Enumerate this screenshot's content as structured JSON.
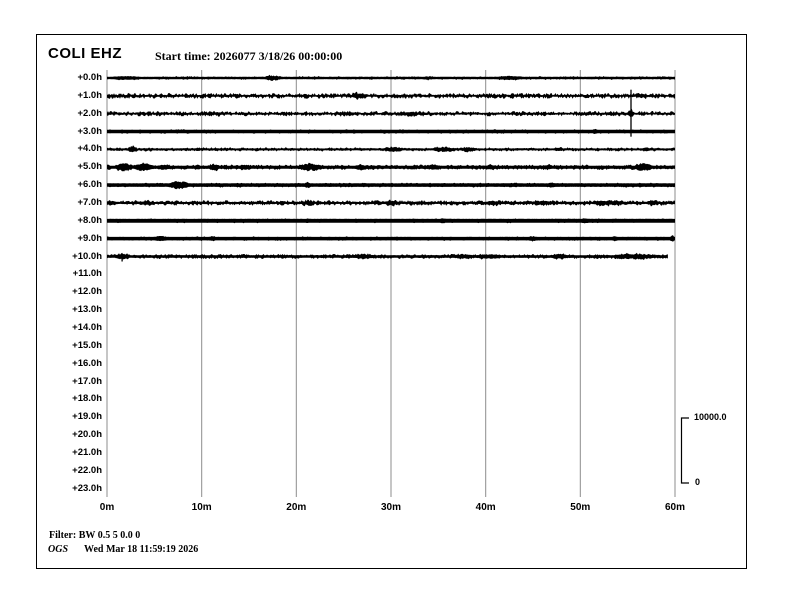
{
  "header": {
    "station": "COLI EHZ",
    "start_time": "Start time: 2026077  3/18/26 00:00:00"
  },
  "footer": {
    "filter": "Filter: BW 0.5 5 0.0 0",
    "org": "OGS",
    "timestamp": "Wed Mar 18 11:59:19 2026"
  },
  "colors": {
    "trace": "#000000",
    "grid": "#8c8c8c",
    "background": "#ffffff",
    "frame": "#000000"
  },
  "chart_data": {
    "type": "line",
    "subtype": "helicorder-seismogram",
    "title": "COLI EHZ",
    "start_time_label": "Start time: 2026077  3/18/26 00:00:00",
    "xlabel_units": "minutes",
    "x_ticks": [
      "0m",
      "10m",
      "20m",
      "30m",
      "40m",
      "50m",
      "60m"
    ],
    "x_range_minutes": [
      0,
      60
    ],
    "row_labels": [
      "+0.0h",
      "+1.0h",
      "+2.0h",
      "+3.0h",
      "+4.0h",
      "+5.0h",
      "+6.0h",
      "+7.0h",
      "+8.0h",
      "+9.0h",
      "+10.0h",
      "+11.0h",
      "+12.0h",
      "+13.0h",
      "+14.0h",
      "+15.0h",
      "+16.0h",
      "+17.0h",
      "+18.0h",
      "+19.0h",
      "+20.0h",
      "+21.0h",
      "+22.0h",
      "+23.0h"
    ],
    "rows_with_data": 11,
    "grid": "vertical-10min",
    "scale_bar": {
      "max_label": "10000.0",
      "min_label": "0"
    },
    "traces": [
      {
        "row": 0,
        "label": "+0.0h",
        "half": 1.1,
        "fuzz": 0.35,
        "dens": 0.14,
        "end": 60,
        "events": [
          {
            "m0": 0.6,
            "m1": 3.5,
            "amp": 0.9
          },
          {
            "m0": 16.7,
            "m1": 18.3,
            "amp": 1.7
          },
          {
            "m0": 33.5,
            "m1": 34.2,
            "amp": 0.6
          },
          {
            "m0": 41.3,
            "m1": 43.9,
            "amp": 1.0
          }
        ],
        "spikes": []
      },
      {
        "row": 1,
        "label": "+1.0h",
        "half": 0.7,
        "fuzz": 0.85,
        "dens": 0.55,
        "end": 60,
        "events": [
          {
            "m0": 25.9,
            "m1": 27.5,
            "amp": 1.9
          },
          {
            "m0": 55.9,
            "m1": 57.1,
            "amp": 1.0
          }
        ],
        "spikes": []
      },
      {
        "row": 2,
        "label": "+2.0h",
        "half": 0.7,
        "fuzz": 0.75,
        "dens": 0.5,
        "end": 60,
        "events": [
          {
            "m0": 10.0,
            "m1": 12.5,
            "amp": 0.5
          },
          {
            "m0": 24.0,
            "m1": 26.5,
            "amp": 0.6
          },
          {
            "m0": 30.8,
            "m1": 34.0,
            "amp": 0.8
          },
          {
            "m0": 55.0,
            "m1": 55.7,
            "amp": 3.6
          }
        ],
        "spikes": [
          {
            "m": 55.35,
            "up": 24,
            "down": 23
          }
        ]
      },
      {
        "row": 3,
        "label": "+3.0h",
        "half": 1.7,
        "fuzz": 0.2,
        "dens": 0.1,
        "end": 60,
        "events": [
          {
            "m0": 51.3,
            "m1": 51.8,
            "amp": 0.8
          }
        ],
        "spikes": []
      },
      {
        "row": 4,
        "label": "+4.0h",
        "half": 0.9,
        "fuzz": 0.45,
        "dens": 0.3,
        "end": 60,
        "events": [
          {
            "m0": 2.2,
            "m1": 3.1,
            "amp": 2.5
          },
          {
            "m0": 29.2,
            "m1": 31.2,
            "amp": 1.5
          },
          {
            "m0": 34.5,
            "m1": 36.5,
            "amp": 1.7
          },
          {
            "m0": 37.6,
            "m1": 39.0,
            "amp": 1.4
          },
          {
            "m0": 47.3,
            "m1": 48.1,
            "amp": 0.9
          },
          {
            "m0": 56.6,
            "m1": 57.4,
            "amp": 1.1
          }
        ],
        "spikes": []
      },
      {
        "row": 5,
        "label": "+5.0h",
        "half": 1.4,
        "fuzz": 0.5,
        "dens": 0.35,
        "end": 60,
        "events": [
          {
            "m0": 1.0,
            "m1": 2.6,
            "amp": 2.7
          },
          {
            "m0": 2.9,
            "m1": 4.8,
            "amp": 2.9
          },
          {
            "m0": 5.3,
            "m1": 6.6,
            "amp": 1.3
          },
          {
            "m0": 10.8,
            "m1": 11.8,
            "amp": 2.3
          },
          {
            "m0": 14.0,
            "m1": 15.2,
            "amp": 1.3
          },
          {
            "m0": 20.3,
            "m1": 22.7,
            "amp": 2.5
          },
          {
            "m0": 26.2,
            "m1": 27.2,
            "amp": 1.6
          },
          {
            "m0": 34.0,
            "m1": 35.0,
            "amp": 1.1
          },
          {
            "m0": 40.0,
            "m1": 41.0,
            "amp": 1.1
          },
          {
            "m0": 46.0,
            "m1": 47.0,
            "amp": 1.0
          },
          {
            "m0": 55.8,
            "m1": 57.6,
            "amp": 2.5
          }
        ],
        "spikes": []
      },
      {
        "row": 6,
        "label": "+6.0h",
        "half": 1.7,
        "fuzz": 0.3,
        "dens": 0.12,
        "end": 60,
        "events": [
          {
            "m0": 6.6,
            "m1": 8.6,
            "amp": 2.5
          },
          {
            "m0": 20.9,
            "m1": 21.5,
            "amp": 1.3
          },
          {
            "m0": 46.6,
            "m1": 47.3,
            "amp": 0.9
          }
        ],
        "spikes": []
      },
      {
        "row": 7,
        "label": "+7.0h",
        "half": 0.9,
        "fuzz": 0.7,
        "dens": 0.5,
        "end": 60,
        "events": [
          {
            "m0": 0.0,
            "m1": 1.0,
            "amp": 1.3
          },
          {
            "m0": 3.6,
            "m1": 4.6,
            "amp": 1.0
          },
          {
            "m0": 20.6,
            "m1": 21.8,
            "amp": 1.4
          },
          {
            "m0": 29.4,
            "m1": 30.6,
            "amp": 1.4
          },
          {
            "m0": 39.9,
            "m1": 41.6,
            "amp": 1.1
          },
          {
            "m0": 45.0,
            "m1": 47.2,
            "amp": 1.0
          },
          {
            "m0": 51.3,
            "m1": 54.6,
            "amp": 1.6
          },
          {
            "m0": 57.0,
            "m1": 58.2,
            "amp": 1.2
          }
        ],
        "spikes": []
      },
      {
        "row": 8,
        "label": "+8.0h",
        "half": 1.9,
        "fuzz": 0.2,
        "dens": 0.08,
        "end": 60,
        "events": [
          {
            "m0": 35.2,
            "m1": 35.7,
            "amp": 0.8
          },
          {
            "m0": 50.2,
            "m1": 50.8,
            "amp": 0.9
          }
        ],
        "spikes": []
      },
      {
        "row": 9,
        "label": "+9.0h",
        "half": 1.7,
        "fuzz": 0.25,
        "dens": 0.1,
        "end": 60,
        "events": [
          {
            "m0": 5.0,
            "m1": 6.3,
            "amp": 0.9
          },
          {
            "m0": 10.9,
            "m1": 11.4,
            "amp": 0.8
          },
          {
            "m0": 44.6,
            "m1": 45.4,
            "amp": 0.9
          },
          {
            "m0": 53.4,
            "m1": 53.9,
            "amp": 0.9
          },
          {
            "m0": 59.5,
            "m1": 59.9,
            "amp": 1.9
          }
        ],
        "spikes": []
      },
      {
        "row": 10,
        "label": "+10.0h",
        "half": 1.2,
        "fuzz": 0.5,
        "dens": 0.35,
        "end": 59.3,
        "events": [
          {
            "m0": 0.9,
            "m1": 2.3,
            "amp": 1.7
          },
          {
            "m0": 26.0,
            "m1": 28.2,
            "amp": 1.1
          },
          {
            "m0": 36.6,
            "m1": 38.6,
            "amp": 1.0
          },
          {
            "m0": 39.0,
            "m1": 41.6,
            "amp": 1.1
          },
          {
            "m0": 47.0,
            "m1": 48.6,
            "amp": 1.0
          },
          {
            "m0": 53.5,
            "m1": 57.7,
            "amp": 1.5
          }
        ],
        "spikes": [
          {
            "m": 1.6,
            "up": 2,
            "down": 5
          }
        ]
      }
    ]
  }
}
